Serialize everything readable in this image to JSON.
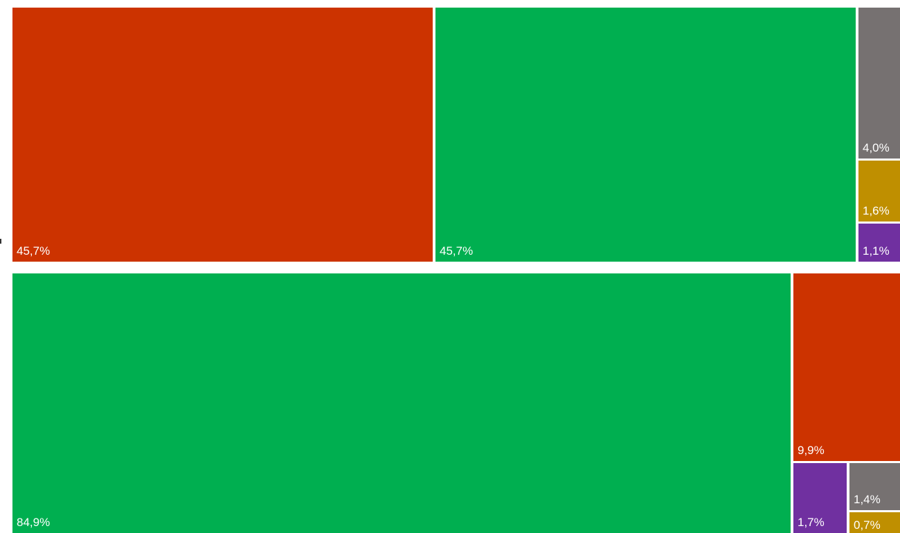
{
  "chart_data": [
    {
      "type": "treemap",
      "tiles": [
        {
          "label": "45,7%",
          "value": 45.7,
          "color": "#CC3300"
        },
        {
          "label": "45,7%",
          "value": 45.7,
          "color": "#00AF50"
        },
        {
          "label": "4,0%",
          "value": 4.0,
          "color": "#767171"
        },
        {
          "label": "1,6%",
          "value": 1.6,
          "color": "#BF8F00"
        },
        {
          "label": "1,1%",
          "value": 1.1,
          "color": "#7030A0"
        }
      ]
    },
    {
      "type": "treemap",
      "tiles": [
        {
          "label": "84,9%",
          "value": 84.9,
          "color": "#00AF50"
        },
        {
          "label": "9,9%",
          "value": 9.9,
          "color": "#CC3300"
        },
        {
          "label": "1,7%",
          "value": 1.7,
          "color": "#7030A0"
        },
        {
          "label": "1,4%",
          "value": 1.4,
          "color": "#767171"
        },
        {
          "label": "0,7%",
          "value": 0.7,
          "color": "#BF8F00"
        }
      ]
    }
  ]
}
